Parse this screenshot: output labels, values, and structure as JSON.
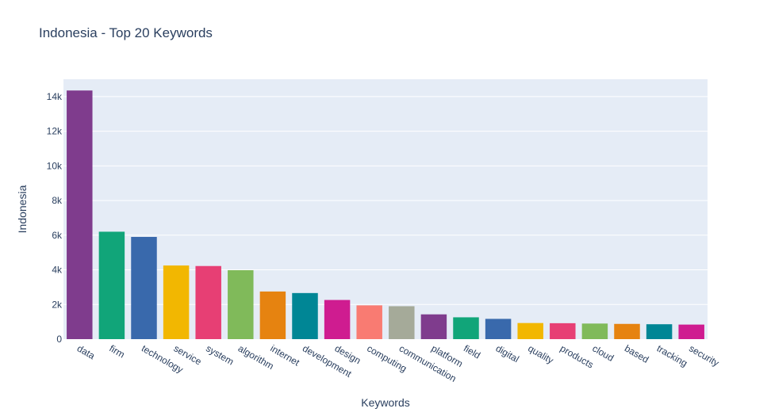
{
  "chart_data": {
    "type": "bar",
    "title": "Indonesia - Top 20 Keywords",
    "xlabel": "Keywords",
    "ylabel": "Indonesia",
    "categories": [
      "data",
      "firm",
      "technology",
      "service",
      "system",
      "algorithm",
      "internet",
      "development",
      "design",
      "computing",
      "communication",
      "platform",
      "field",
      "digital",
      "quality",
      "products",
      "cloud",
      "based",
      "tracking",
      "security"
    ],
    "values": [
      14350,
      6200,
      5900,
      4250,
      4220,
      3980,
      2750,
      2660,
      2260,
      1950,
      1900,
      1430,
      1260,
      1170,
      930,
      920,
      900,
      880,
      860,
      840
    ],
    "colors": [
      "#7f3c8d",
      "#11a579",
      "#3969ac",
      "#f2b701",
      "#e73f74",
      "#80ba5a",
      "#e68310",
      "#008695",
      "#cf1c90",
      "#f97b72",
      "#a5aa99",
      "#7f3c8d",
      "#11a579",
      "#3969ac",
      "#f2b701",
      "#e73f74",
      "#80ba5a",
      "#e68310",
      "#008695",
      "#cf1c90"
    ],
    "ylim": [
      0,
      15000
    ],
    "yticks": [
      0,
      2000,
      4000,
      6000,
      8000,
      10000,
      12000,
      14000
    ],
    "ytick_labels": [
      "0",
      "2k",
      "4k",
      "6k",
      "8k",
      "10k",
      "12k",
      "14k"
    ],
    "plot_background": "#e5ecf6",
    "grid": true,
    "legend": "none"
  }
}
